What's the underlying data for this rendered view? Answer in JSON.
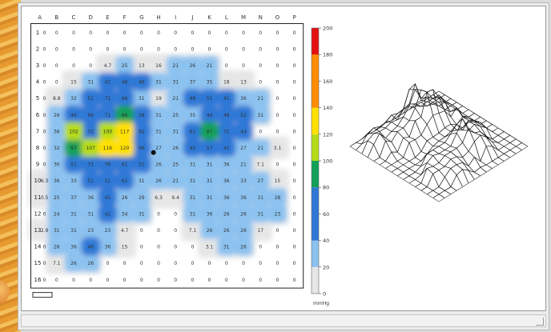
{
  "chart_data": [
    {
      "type": "heatmap",
      "columns": [
        "A",
        "B",
        "C",
        "D",
        "E",
        "F",
        "G",
        "H",
        "I",
        "J",
        "K",
        "L",
        "M",
        "N",
        "O",
        "P"
      ],
      "rows": [
        "1",
        "2",
        "3",
        "4",
        "5",
        "6",
        "7",
        "8",
        "9",
        "10",
        "11",
        "12",
        "13",
        "14",
        "15",
        "16"
      ],
      "values": [
        [
          0,
          0,
          0,
          0,
          0,
          0,
          0,
          0,
          0,
          0,
          0,
          0,
          0,
          0,
          0,
          0
        ],
        [
          0,
          0,
          0,
          0,
          0,
          0,
          0,
          0,
          0,
          0,
          0,
          0,
          0,
          0,
          0,
          0
        ],
        [
          0,
          0,
          0,
          0,
          4.7,
          25,
          13,
          16,
          21,
          26,
          21,
          0,
          0,
          0,
          0,
          0
        ],
        [
          0,
          0,
          15,
          31,
          41,
          46,
          46,
          31,
          31,
          37,
          35,
          18,
          13,
          0,
          0,
          0
        ],
        [
          0,
          8.8,
          32,
          51,
          71,
          66,
          31,
          19,
          21,
          48,
          51,
          41,
          36,
          21,
          0,
          0
        ],
        [
          0,
          26,
          46,
          66,
          71,
          86,
          58,
          31,
          25,
          35,
          44,
          48,
          52,
          31,
          0,
          0
        ],
        [
          0,
          36,
          102,
          72,
          100,
          117,
          62,
          31,
          31,
          61,
          87,
          71,
          44,
          0,
          0,
          0
        ],
        [
          0,
          32,
          97,
          107,
          116,
          120,
          66,
          27,
          26,
          45,
          57,
          41,
          27,
          21,
          3.1,
          0
        ],
        [
          0,
          30,
          51,
          71,
          76,
          61,
          51,
          26,
          25,
          31,
          31,
          36,
          21,
          7.1,
          0,
          0
        ],
        [
          6.3,
          36,
          33,
          51,
          51,
          61,
          31,
          26,
          21,
          31,
          31,
          36,
          33,
          27,
          15,
          0
        ],
        [
          0.5,
          25,
          37,
          36,
          41,
          26,
          29,
          6.3,
          9.4,
          31,
          31,
          36,
          36,
          31,
          28,
          0
        ],
        [
          0,
          24,
          31,
          31,
          41,
          34,
          31,
          0,
          0,
          31,
          36,
          26,
          26,
          31,
          23,
          0
        ],
        [
          2.9,
          31,
          31,
          23,
          23,
          4.7,
          0,
          0,
          0,
          7.1,
          26,
          26,
          26,
          17,
          0,
          0
        ],
        [
          0,
          26,
          36,
          46,
          36,
          15,
          0,
          0,
          0,
          0,
          3.1,
          31,
          26,
          0,
          0,
          0
        ],
        [
          0,
          7.1,
          26,
          26,
          0,
          0,
          0,
          0,
          0,
          0,
          0,
          0,
          0,
          0,
          0,
          0
        ],
        [
          0,
          0,
          0,
          0,
          0,
          0,
          0,
          0,
          0,
          0,
          0,
          0,
          0,
          0,
          0,
          0
        ]
      ],
      "scale_labels": [
        "200",
        "180",
        "160",
        "140",
        "120",
        "100",
        "80",
        "60",
        "40",
        "20",
        "0"
      ],
      "unit": "mmHg",
      "scale_range": [
        0,
        200
      ],
      "colors": {
        "c0": "#ffffff",
        "c1": "#e6e6e6",
        "c2": "#8cc2f0",
        "c3": "#2e78d6",
        "c4": "#12a058",
        "c5": "#b6dc18",
        "c6": "#ffe000",
        "c7": "#ff8c00",
        "c8": "#e41010"
      },
      "grid": false,
      "legend": "right"
    },
    {
      "type": "surface",
      "note_ref": "wireframe 3-D view of the same pressure matrix"
    }
  ]
}
